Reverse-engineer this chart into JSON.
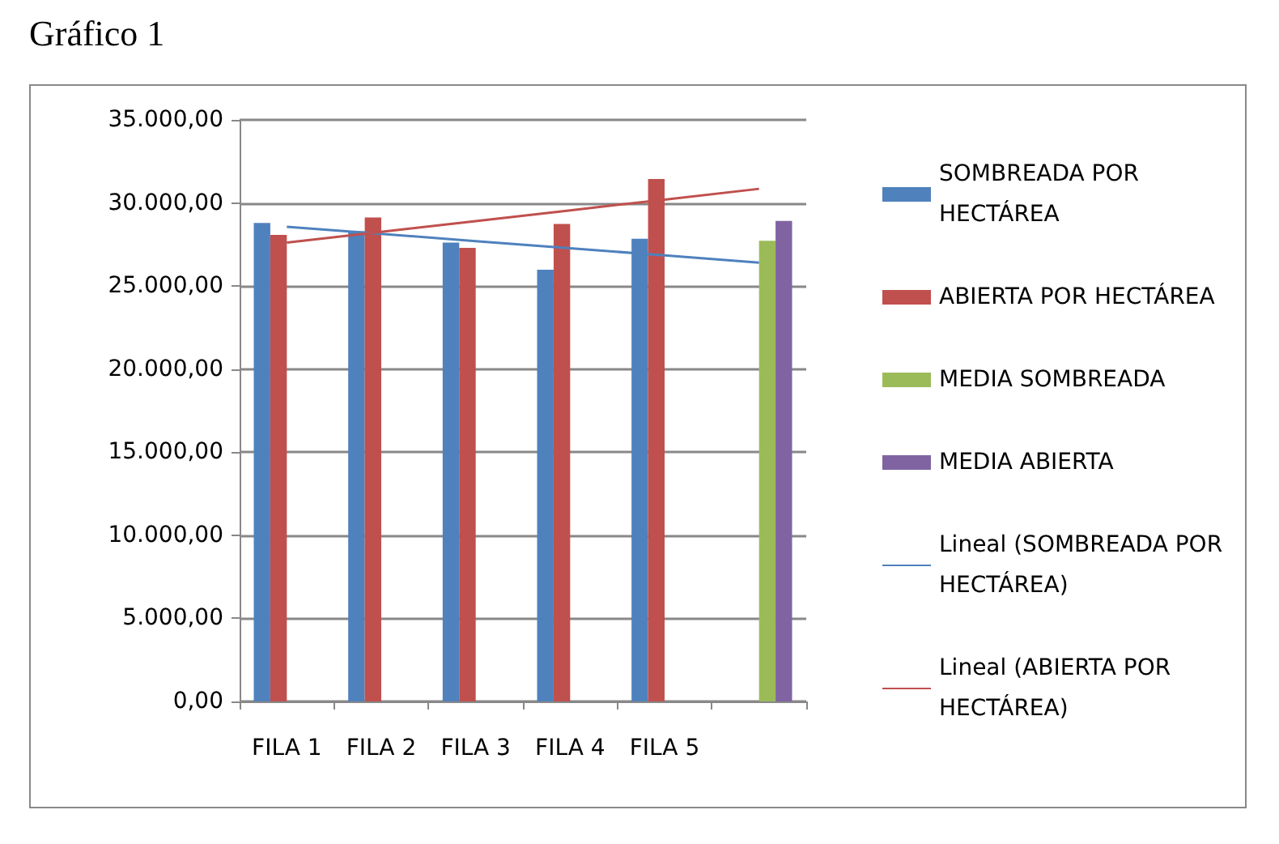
{
  "chart_data": {
    "type": "bar",
    "title": "Gráfico 1",
    "categories": [
      "FILA 1",
      "FILA 2",
      "FILA 3",
      "FILA 4",
      "FILA 5",
      null
    ],
    "series": [
      {
        "name": "SOMBREADA POR HECTÁREA",
        "color": "#4f81bd",
        "values": [
          28800,
          28300,
          27620,
          25980,
          27850,
          null
        ]
      },
      {
        "name": "ABIERTA POR HECTÁREA",
        "color": "#c0504d",
        "values": [
          28080,
          29120,
          27300,
          28730,
          31440,
          null
        ]
      },
      {
        "name": "MEDIA SOMBREADA",
        "color": "#9bbb59",
        "values": [
          null,
          null,
          null,
          null,
          null,
          27720
        ]
      },
      {
        "name": "MEDIA ABIERTA",
        "color": "#8064a2",
        "values": [
          null,
          null,
          null,
          null,
          null,
          28920
        ]
      },
      {
        "name": "Lineal (SOMBREADA POR HECTÁREA)",
        "type": "line",
        "color": "#4f81bd",
        "values": [
          28570,
          28138,
          27706,
          27274,
          26842,
          26410
        ]
      },
      {
        "name": "Lineal (ABIERTA POR HECTÁREA)",
        "type": "line",
        "color": "#c0504d",
        "values": [
          27620,
          28266,
          28912,
          29558,
          30204,
          30850
        ]
      }
    ],
    "ylim": [
      0,
      35000
    ],
    "yticks": [
      {
        "value": 0,
        "label": "0,00"
      },
      {
        "value": 5000,
        "label": "5.000,00"
      },
      {
        "value": 10000,
        "label": "10.000,00"
      },
      {
        "value": 15000,
        "label": "15.000,00"
      },
      {
        "value": 20000,
        "label": "20.000,00"
      },
      {
        "value": 25000,
        "label": "25.000,00"
      },
      {
        "value": 30000,
        "label": "30.000,00"
      },
      {
        "value": 35000,
        "label": "35.000,00"
      }
    ],
    "grid": "y",
    "legend": "right",
    "marker": "none"
  }
}
